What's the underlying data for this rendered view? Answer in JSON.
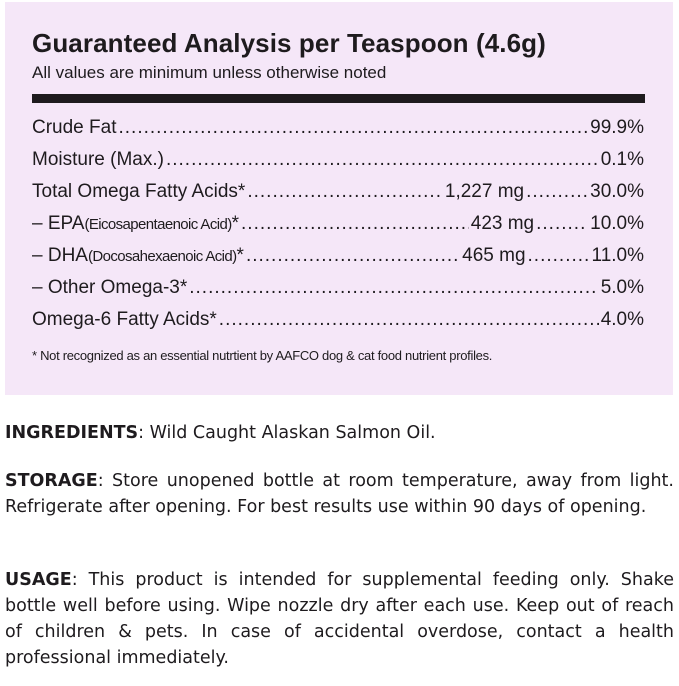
{
  "analysis": {
    "title": "Guaranteed Analysis per Teaspoon (4.6g)",
    "subtitle": "All values are minimum unless otherwise noted",
    "rows": [
      {
        "prefix": "Crude Fat",
        "detail": "",
        "suffix": "",
        "amount": "",
        "percent": "99.9%"
      },
      {
        "prefix": "Moisture (Max.)",
        "detail": "",
        "suffix": "",
        "amount": "",
        "percent": "0.1%"
      },
      {
        "prefix": "Total Omega Fatty Acids*",
        "detail": "",
        "suffix": "",
        "amount": "1,227 mg",
        "percent": "30.0%"
      },
      {
        "prefix": "– EPA ",
        "detail": "(Eicosapentaenoic Acid)",
        "suffix": "*",
        "amount": "423 mg",
        "percent": "10.0%"
      },
      {
        "prefix": "– DHA ",
        "detail": "(Docosahexaenoic Acid)",
        "suffix": "*",
        "amount": "465 mg",
        "percent": "11.0%"
      },
      {
        "prefix": "– Other Omega-3*",
        "detail": "",
        "suffix": "",
        "amount": "",
        "percent": "5.0%"
      },
      {
        "prefix": "Omega-6 Fatty Acids*",
        "detail": "",
        "suffix": "",
        "amount": "",
        "percent": "4.0%"
      }
    ],
    "footnote": "* Not recognized as an essential nutrtient by AAFCO dog & cat food nutrient profiles."
  },
  "ingredients": {
    "label": "INGREDIENTS",
    "text": ": Wild Caught Alaskan Salmon Oil."
  },
  "storage": {
    "label": "STORAGE",
    "text": ": Store unopened bottle at room temperature, away from light. Refrigerate after opening. For best results use within 90 days of opening."
  },
  "usage": {
    "label": "USAGE",
    "text": ": This product is intended for supplemental feeding only. Shake bottle well before using. Wipe nozzle dry after each use. Keep out of reach of children & pets. In case of accidental overdose, contact a health professional immediately."
  }
}
